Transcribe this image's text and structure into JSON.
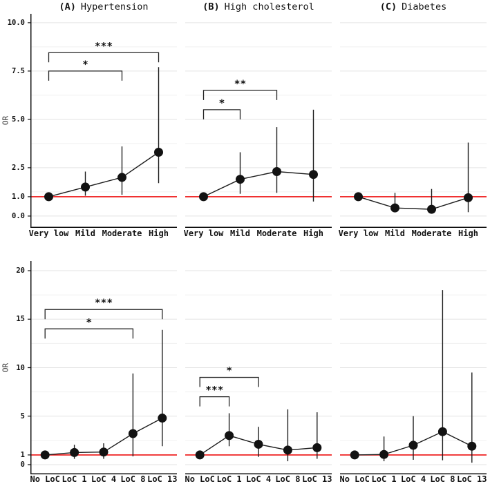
{
  "chart_data": {
    "type": "scatter",
    "description": "Forest-style point estimates (odds ratios) with 95% CI error bars, 2 rows x 3 condition panels, red reference line at OR = 1",
    "reference_or": 1.0,
    "colors": {
      "point": "#121212",
      "series_line": "#1c1c1c",
      "error_bar": "#1c1c1c",
      "reference_line": "#ee1111",
      "grid_major": "#e3e3e3",
      "grid_minor": "#f0f0f0",
      "axis_line": "#111111",
      "bracket": "#222222",
      "text": "#111111"
    },
    "rows": [
      {
        "ylabel": "OR",
        "ylim": [
          -0.61,
          10.46
        ],
        "yticks": [
          {
            "value": 10.0,
            "label": "10.0"
          },
          {
            "value": 7.5,
            "label": "7.5"
          },
          {
            "value": 5.0,
            "label": "5.0"
          },
          {
            "value": 2.5,
            "label": "2.5"
          },
          {
            "value": 1.0,
            "label": "1.0"
          },
          {
            "value": 0.0,
            "label": "0.0"
          }
        ],
        "minor_gridlines": [
          1.25,
          3.75,
          6.25,
          8.75
        ],
        "categories": [
          "Very low",
          "Mild",
          "Moderate",
          "High"
        ],
        "panels": [
          {
            "panel_label": "(A)",
            "title": "Hypertension",
            "points": [
              {
                "category": "Very low",
                "or": 1.0,
                "ci_low": 0.95,
                "ci_high": 1.06
              },
              {
                "category": "Mild",
                "or": 1.5,
                "ci_low": 1.05,
                "ci_high": 2.3
              },
              {
                "category": "Moderate",
                "or": 2.0,
                "ci_low": 1.1,
                "ci_high": 3.6
              },
              {
                "category": "High",
                "or": 3.3,
                "ci_low": 1.7,
                "ci_high": 7.7
              }
            ],
            "significance": [
              {
                "from": "Very low",
                "to": "Moderate",
                "stars": "*",
                "height_or": 7.5
              },
              {
                "from": "Very low",
                "to": "High",
                "stars": "***",
                "height_or": 8.45
              }
            ]
          },
          {
            "panel_label": "(B)",
            "title": "High cholesterol",
            "points": [
              {
                "category": "Very low",
                "or": 1.0,
                "ci_low": 0.95,
                "ci_high": 1.06
              },
              {
                "category": "Mild",
                "or": 1.9,
                "ci_low": 1.15,
                "ci_high": 3.3
              },
              {
                "category": "Moderate",
                "or": 2.3,
                "ci_low": 1.2,
                "ci_high": 4.6
              },
              {
                "category": "High",
                "or": 2.15,
                "ci_low": 0.75,
                "ci_high": 5.5
              }
            ],
            "significance": [
              {
                "from": "Very low",
                "to": "Mild",
                "stars": "*",
                "height_or": 5.5
              },
              {
                "from": "Very low",
                "to": "Moderate",
                "stars": "**",
                "height_or": 6.5
              }
            ]
          },
          {
            "panel_label": "(C)",
            "title": "Diabetes",
            "points": [
              {
                "category": "Very low",
                "or": 1.0,
                "ci_low": 0.95,
                "ci_high": 1.06
              },
              {
                "category": "Mild",
                "or": 0.42,
                "ci_low": 0.2,
                "ci_high": 1.2
              },
              {
                "category": "Moderate",
                "or": 0.35,
                "ci_low": 0.15,
                "ci_high": 1.4
              },
              {
                "category": "High",
                "or": 0.95,
                "ci_low": 0.2,
                "ci_high": 3.8
              }
            ],
            "significance": []
          }
        ]
      },
      {
        "ylabel": "OR",
        "ylim": [
          -1.0,
          21.0
        ],
        "yticks": [
          {
            "value": 20,
            "label": "20"
          },
          {
            "value": 15,
            "label": "15"
          },
          {
            "value": 10,
            "label": "10"
          },
          {
            "value": 5,
            "label": "5"
          },
          {
            "value": 1,
            "label": "1"
          },
          {
            "value": 0,
            "label": "0"
          }
        ],
        "minor_gridlines": [
          2.5,
          7.5,
          12.5,
          17.5
        ],
        "categories": [
          "No LoC",
          "LoC 1",
          "LoC 4",
          "LoC 8",
          "LoC 13"
        ],
        "panels": [
          {
            "panel_label": "(A)",
            "title": "Hypertension",
            "points": [
              {
                "category": "No LoC",
                "or": 1.0,
                "ci_low": 0.95,
                "ci_high": 1.05
              },
              {
                "category": "LoC 1",
                "or": 1.25,
                "ci_low": 0.6,
                "ci_high": 2.05
              },
              {
                "category": "LoC 4",
                "or": 1.3,
                "ci_low": 0.6,
                "ci_high": 2.2
              },
              {
                "category": "LoC 8",
                "or": 3.2,
                "ci_low": 0.85,
                "ci_high": 9.4
              },
              {
                "category": "LoC 13",
                "or": 4.8,
                "ci_low": 1.9,
                "ci_high": 13.9
              }
            ],
            "significance": [
              {
                "from": "No LoC",
                "to": "LoC 8",
                "stars": "*",
                "height_or": 14.0
              },
              {
                "from": "No LoC",
                "to": "LoC 13",
                "stars": "***",
                "height_or": 16.0
              }
            ]
          },
          {
            "panel_label": "(B)",
            "title": "High cholesterol",
            "points": [
              {
                "category": "No LoC",
                "or": 1.0,
                "ci_low": 0.95,
                "ci_high": 1.05
              },
              {
                "category": "LoC 1",
                "or": 3.0,
                "ci_low": 1.9,
                "ci_high": 5.3
              },
              {
                "category": "LoC 4",
                "or": 2.1,
                "ci_low": 0.8,
                "ci_high": 3.9
              },
              {
                "category": "LoC 8",
                "or": 1.5,
                "ci_low": 0.35,
                "ci_high": 5.7
              },
              {
                "category": "LoC 13",
                "or": 1.75,
                "ci_low": 0.6,
                "ci_high": 5.4
              }
            ],
            "significance": [
              {
                "from": "No LoC",
                "to": "LoC 1",
                "stars": "***",
                "height_or": 7.0
              },
              {
                "from": "No LoC",
                "to": "LoC 4",
                "stars": "*",
                "height_or": 9.0
              }
            ]
          },
          {
            "panel_label": "(C)",
            "title": "Diabetes",
            "points": [
              {
                "category": "No LoC",
                "or": 1.0,
                "ci_low": 0.95,
                "ci_high": 1.05
              },
              {
                "category": "LoC 1",
                "or": 1.05,
                "ci_low": 0.35,
                "ci_high": 2.9
              },
              {
                "category": "LoC 4",
                "or": 2.0,
                "ci_low": 0.5,
                "ci_high": 5.0
              },
              {
                "category": "LoC 8",
                "or": 3.4,
                "ci_low": 0.45,
                "ci_high": 18.0
              },
              {
                "category": "LoC 13",
                "or": 1.9,
                "ci_low": 0.2,
                "ci_high": 9.5
              }
            ],
            "significance": []
          }
        ]
      }
    ]
  }
}
